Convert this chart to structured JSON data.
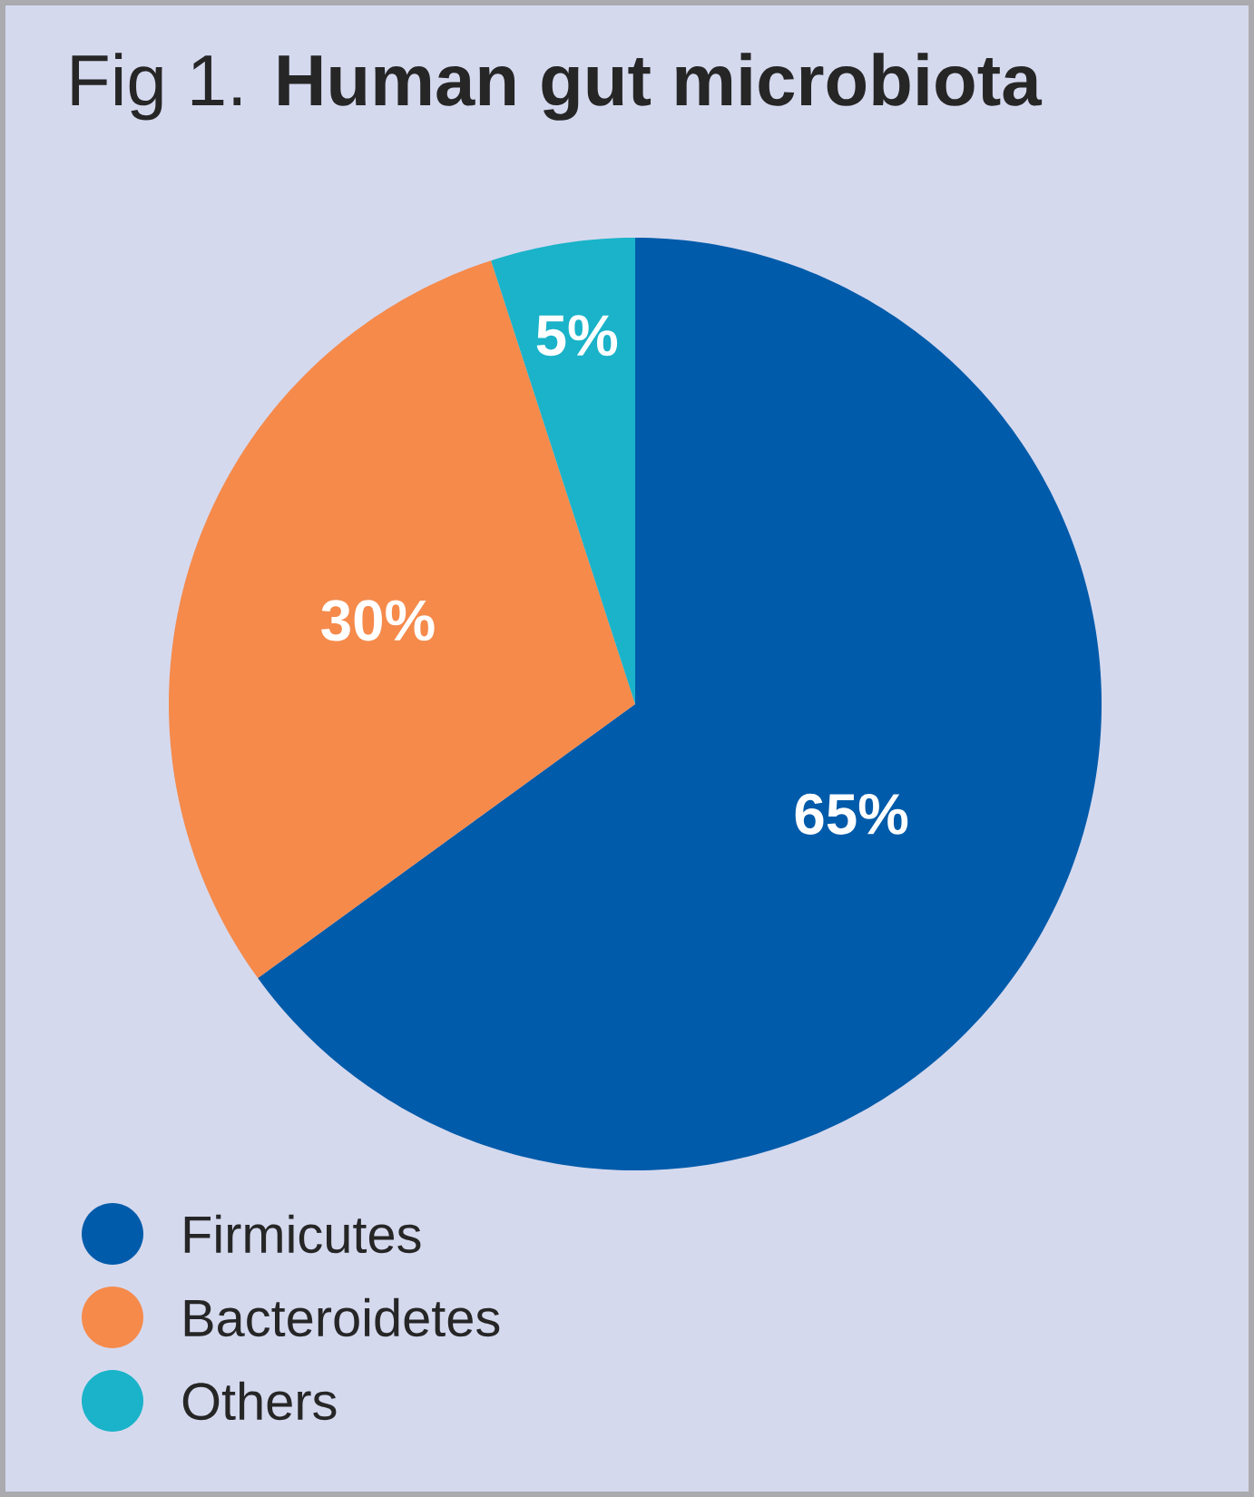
{
  "chart_data": {
    "type": "pie",
    "title": "Fig 1. **Human gut microbiota**",
    "categories": [
      "Firmicutes",
      "Bacteroidetes",
      "Others"
    ],
    "values": [
      65,
      30,
      5
    ],
    "colors": [
      "#005baa",
      "#f58a4b",
      "#1ab3c9"
    ],
    "value_labels": [
      "65%",
      "30%",
      "5%"
    ],
    "legend": "bottom left",
    "marker": "circle"
  }
}
